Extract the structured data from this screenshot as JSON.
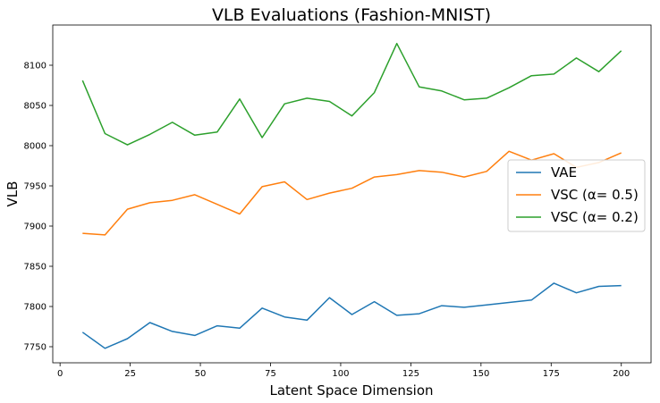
{
  "chart_data": {
    "type": "line",
    "title": "VLB Evaluations (Fashion-MNIST)",
    "xlabel": "Latent Space Dimension",
    "ylabel": "VLB",
    "xlim": [
      -2.6,
      210.6
    ],
    "ylim": [
      7730,
      8150
    ],
    "xticks": [
      0,
      25,
      50,
      75,
      100,
      125,
      150,
      175,
      200
    ],
    "yticks": [
      7750,
      7800,
      7850,
      7900,
      7950,
      8000,
      8050,
      8100
    ],
    "grid": false,
    "legend_position": "right",
    "x": [
      8,
      16,
      24,
      32,
      40,
      48,
      56,
      64,
      72,
      80,
      88,
      96,
      104,
      112,
      120,
      128,
      136,
      144,
      152,
      160,
      168,
      176,
      184,
      192,
      200
    ],
    "series": [
      {
        "name": "VAE",
        "color": "#1f77b4",
        "values": [
          7768,
          7748,
          7760,
          7780,
          7769,
          7764,
          7776,
          7773,
          7798,
          7787,
          7783,
          7811,
          7790,
          7806,
          7789,
          7791,
          7801,
          7799,
          7802,
          7805,
          7808,
          7829,
          7817,
          7825,
          7826
        ]
      },
      {
        "name": "VSC (α= 0.5)",
        "color": "#ff7f0e",
        "values": [
          7891,
          7889,
          7921,
          7929,
          7932,
          7939,
          7927,
          7915,
          7949,
          7955,
          7933,
          7941,
          7947,
          7961,
          7964,
          7969,
          7967,
          7961,
          7968,
          7993,
          7982,
          7990,
          7973,
          7979,
          7991
        ]
      },
      {
        "name": "VSC (α= 0.2)",
        "color": "#2ca02c",
        "values": [
          8081,
          8015,
          8001,
          8014,
          8029,
          8013,
          8017,
          8058,
          8010,
          8052,
          8059,
          8055,
          8037,
          8066,
          8127,
          8073,
          8068,
          8057,
          8059,
          8072,
          8087,
          8089,
          8109,
          8092,
          8118
        ]
      }
    ]
  }
}
